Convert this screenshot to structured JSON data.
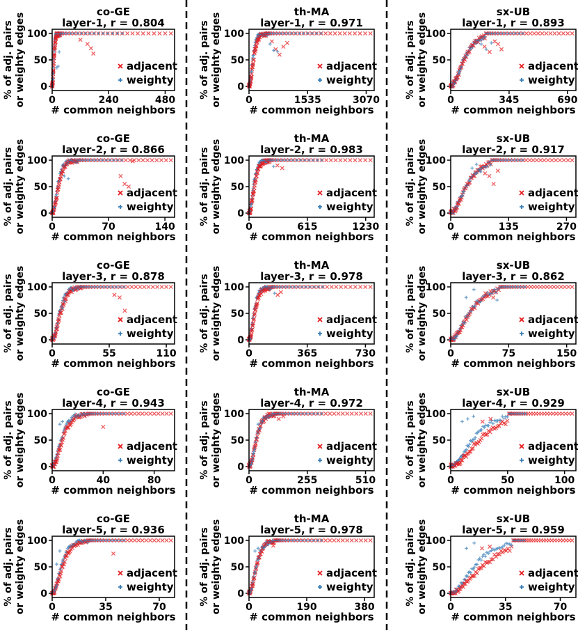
{
  "colors": {
    "adjacent": "#e41a1c",
    "weighty": "#377eb8",
    "axis": "#000000",
    "divider": "#000000"
  },
  "figure": {
    "ylabel_line1": "% of adj. pairs",
    "ylabel_line2": "or weighty edges",
    "xlabel": "# common neighbors",
    "legend_adjacent": "adjacent",
    "legend_weighty": "weighty"
  },
  "chart_data": [
    {
      "type": "scatter",
      "dataset": "co-GE",
      "title_line1": "co-GE",
      "title_line2": "layer-1, r = 0.804",
      "xticks": [
        0,
        240,
        480
      ],
      "xlim": [
        0,
        520
      ],
      "yticks": [
        0,
        50,
        100
      ],
      "ylim": [
        0,
        100
      ],
      "profile": {
        "growth": 22,
        "k_adj": 8,
        "k_wt": 7,
        "adj_outliers": [
          [
            120,
            88
          ],
          [
            150,
            80
          ],
          [
            165,
            72
          ],
          [
            175,
            62
          ]
        ],
        "wt_outliers": [
          [
            20,
            35
          ],
          [
            25,
            38
          ],
          [
            30,
            65
          ]
        ]
      },
      "series": [
        {
          "name": "adjacent",
          "marker": "x"
        },
        {
          "name": "weighty",
          "marker": "+"
        }
      ]
    },
    {
      "type": "scatter",
      "dataset": "th-MA",
      "title_line1": "th-MA",
      "title_line2": "layer-1, r = 0.971",
      "xticks": [
        0,
        1535,
        3070
      ],
      "xlim": [
        0,
        3280
      ],
      "yticks": [
        0,
        50,
        100
      ],
      "ylim": [
        0,
        100
      ],
      "profile": {
        "growth": 320,
        "k_adj": 7,
        "k_wt": 6,
        "adj_outliers": [
          [
            600,
            85
          ],
          [
            700,
            70
          ],
          [
            800,
            60
          ],
          [
            900,
            75
          ],
          [
            1000,
            82
          ]
        ],
        "wt_outliers": [
          [
            550,
            80
          ],
          [
            650,
            68
          ],
          [
            750,
            66
          ]
        ]
      },
      "series": [
        {
          "name": "adjacent",
          "marker": "x"
        },
        {
          "name": "weighty",
          "marker": "+"
        }
      ]
    },
    {
      "type": "scatter",
      "dataset": "sx-UB",
      "title_line1": "sx-UB",
      "title_line2": "layer-1, r = 0.893",
      "xticks": [
        0,
        345,
        690
      ],
      "xlim": [
        0,
        740
      ],
      "yticks": [
        0,
        50,
        100
      ],
      "ylim": [
        0,
        100
      ],
      "profile": {
        "growth": 130,
        "k_adj": 3,
        "k_wt": 2,
        "adj_outliers": [
          [
            200,
            75
          ],
          [
            230,
            65
          ],
          [
            260,
            85
          ],
          [
            280,
            80
          ],
          [
            300,
            70
          ]
        ],
        "wt_outliers": [
          [
            180,
            80
          ],
          [
            210,
            70
          ],
          [
            240,
            82
          ]
        ]
      },
      "series": [
        {
          "name": "adjacent",
          "marker": "x"
        },
        {
          "name": "weighty",
          "marker": "+"
        }
      ]
    },
    {
      "type": "scatter",
      "dataset": "co-GE",
      "title_line1": "co-GE",
      "title_line2": "layer-2, r = 0.866",
      "xticks": [
        0,
        70,
        140
      ],
      "xlim": [
        0,
        152
      ],
      "yticks": [
        0,
        50,
        100
      ],
      "ylim": [
        0,
        100
      ],
      "profile": {
        "growth": 20,
        "k_adj": 6,
        "k_wt": 5,
        "adj_outliers": [
          [
            85,
            70
          ],
          [
            90,
            55
          ],
          [
            95,
            50
          ],
          [
            100,
            98
          ]
        ],
        "wt_outliers": [
          [
            15,
            70
          ],
          [
            20,
            65
          ]
        ]
      },
      "series": [
        {
          "name": "adjacent",
          "marker": "x"
        },
        {
          "name": "weighty",
          "marker": "+"
        }
      ]
    },
    {
      "type": "scatter",
      "dataset": "th-MA",
      "title_line1": "th-MA",
      "title_line2": "layer-2, r = 0.983",
      "xticks": [
        0,
        615,
        1230
      ],
      "xlim": [
        0,
        1320
      ],
      "yticks": [
        0,
        50,
        100
      ],
      "ylim": [
        0,
        100
      ],
      "profile": {
        "growth": 140,
        "k_adj": 6,
        "k_wt": 5,
        "adj_outliers": [
          [
            300,
            90
          ],
          [
            350,
            85
          ]
        ],
        "wt_outliers": [
          [
            260,
            88
          ]
        ]
      },
      "series": [
        {
          "name": "adjacent",
          "marker": "x"
        },
        {
          "name": "weighty",
          "marker": "+"
        }
      ]
    },
    {
      "type": "scatter",
      "dataset": "sx-UB",
      "title_line1": "sx-UB",
      "title_line2": "layer-2, r = 0.917",
      "xticks": [
        0,
        135,
        270
      ],
      "xlim": [
        0,
        292
      ],
      "yticks": [
        0,
        50,
        100
      ],
      "ylim": [
        0,
        100
      ],
      "profile": {
        "growth": 60,
        "k_adj": 3,
        "k_wt": 2,
        "adj_outliers": [
          [
            80,
            75
          ],
          [
            90,
            70
          ],
          [
            100,
            55
          ],
          [
            110,
            80
          ]
        ],
        "wt_outliers": [
          [
            50,
            85
          ],
          [
            60,
            92
          ],
          [
            70,
            78
          ]
        ]
      },
      "series": [
        {
          "name": "adjacent",
          "marker": "x"
        },
        {
          "name": "weighty",
          "marker": "+"
        }
      ]
    },
    {
      "type": "scatter",
      "dataset": "co-GE",
      "title_line1": "co-GE",
      "title_line2": "layer-3, r = 0.878",
      "xticks": [
        0,
        55,
        110
      ],
      "xlim": [
        0,
        118
      ],
      "yticks": [
        0,
        50,
        100
      ],
      "ylim": [
        0,
        100
      ],
      "profile": {
        "growth": 18,
        "k_adj": 5,
        "k_wt": 4,
        "adj_outliers": [
          [
            60,
            85
          ],
          [
            65,
            80
          ],
          [
            70,
            55
          ]
        ],
        "wt_outliers": [
          [
            10,
            60
          ],
          [
            12,
            72
          ]
        ]
      },
      "series": [
        {
          "name": "adjacent",
          "marker": "x"
        },
        {
          "name": "weighty",
          "marker": "+"
        }
      ]
    },
    {
      "type": "scatter",
      "dataset": "th-MA",
      "title_line1": "th-MA",
      "title_line2": "layer-3, r = 0.978",
      "xticks": [
        0,
        365,
        730
      ],
      "xlim": [
        0,
        785
      ],
      "yticks": [
        0,
        50,
        100
      ],
      "ylim": [
        0,
        100
      ],
      "profile": {
        "growth": 90,
        "k_adj": 6,
        "k_wt": 5,
        "adj_outliers": [
          [
            180,
            85
          ],
          [
            200,
            90
          ]
        ],
        "wt_outliers": [
          [
            160,
            88
          ]
        ]
      },
      "series": [
        {
          "name": "adjacent",
          "marker": "x"
        },
        {
          "name": "weighty",
          "marker": "+"
        }
      ]
    },
    {
      "type": "scatter",
      "dataset": "sx-UB",
      "title_line1": "sx-UB",
      "title_line2": "layer-3, r = 0.862",
      "xticks": [
        0,
        75,
        150
      ],
      "xlim": [
        0,
        162
      ],
      "yticks": [
        0,
        50,
        100
      ],
      "ylim": [
        0,
        100
      ],
      "profile": {
        "growth": 40,
        "k_adj": 3,
        "k_wt": 2,
        "adj_outliers": [
          [
            45,
            88
          ],
          [
            55,
            80
          ]
        ],
        "wt_outliers": [
          [
            20,
            80
          ],
          [
            30,
            95
          ],
          [
            60,
            75
          ]
        ]
      },
      "series": [
        {
          "name": "adjacent",
          "marker": "x"
        },
        {
          "name": "weighty",
          "marker": "+"
        }
      ]
    },
    {
      "type": "scatter",
      "dataset": "co-GE",
      "title_line1": "co-GE",
      "title_line2": "layer-4, r = 0.943",
      "xticks": [
        0,
        40,
        80
      ],
      "xlim": [
        0,
        96
      ],
      "yticks": [
        0,
        50,
        100
      ],
      "ylim": [
        0,
        100
      ],
      "profile": {
        "growth": 18,
        "k_adj": 5,
        "k_wt": 4,
        "adj_outliers": [
          [
            40,
            75
          ]
        ],
        "wt_outliers": [
          [
            6,
            80
          ],
          [
            8,
            85
          ]
        ]
      },
      "series": [
        {
          "name": "adjacent",
          "marker": "x"
        },
        {
          "name": "weighty",
          "marker": "+"
        }
      ]
    },
    {
      "type": "scatter",
      "dataset": "th-MA",
      "title_line1": "th-MA",
      "title_line2": "layer-4, r = 0.972",
      "xticks": [
        0,
        255,
        510
      ],
      "xlim": [
        0,
        548
      ],
      "yticks": [
        0,
        50,
        100
      ],
      "ylim": [
        0,
        100
      ],
      "profile": {
        "growth": 80,
        "k_adj": 6,
        "k_wt": 4,
        "adj_outliers": [
          [
            130,
            90
          ],
          [
            150,
            95
          ]
        ],
        "wt_outliers": [
          [
            40,
            80
          ],
          [
            60,
            85
          ]
        ]
      },
      "series": [
        {
          "name": "adjacent",
          "marker": "x"
        },
        {
          "name": "weighty",
          "marker": "+"
        }
      ]
    },
    {
      "type": "scatter",
      "dataset": "sx-UB",
      "title_line1": "sx-UB",
      "title_line2": "layer-4, r = 0.929",
      "xticks": [
        0,
        50,
        100
      ],
      "xlim": [
        0,
        110
      ],
      "yticks": [
        0,
        50,
        100
      ],
      "ylim": [
        0,
        100
      ],
      "profile": {
        "growth": 32,
        "k_adj": 2,
        "k_wt": 2,
        "adj_outliers": [
          [
            28,
            85
          ],
          [
            35,
            90
          ]
        ],
        "wt_outliers": [
          [
            10,
            85
          ],
          [
            15,
            90
          ],
          [
            20,
            95
          ]
        ]
      },
      "series": [
        {
          "name": "adjacent",
          "marker": "x"
        },
        {
          "name": "weighty",
          "marker": "+"
        }
      ]
    },
    {
      "type": "scatter",
      "dataset": "co-GE",
      "title_line1": "co-GE",
      "title_line2": "layer-5, r = 0.936",
      "xticks": [
        0,
        35,
        70
      ],
      "xlim": [
        0,
        80
      ],
      "yticks": [
        0,
        50,
        100
      ],
      "ylim": [
        0,
        100
      ],
      "profile": {
        "growth": 15,
        "k_adj": 5,
        "k_wt": 4,
        "adj_outliers": [
          [
            40,
            75
          ]
        ],
        "wt_outliers": [
          [
            3,
            55
          ],
          [
            5,
            80
          ]
        ]
      },
      "series": [
        {
          "name": "adjacent",
          "marker": "x"
        },
        {
          "name": "weighty",
          "marker": "+"
        }
      ]
    },
    {
      "type": "scatter",
      "dataset": "th-MA",
      "title_line1": "th-MA",
      "title_line2": "layer-5, r = 0.978",
      "xticks": [
        0,
        190,
        380
      ],
      "xlim": [
        0,
        412
      ],
      "yticks": [
        0,
        50,
        100
      ],
      "ylim": [
        0,
        100
      ],
      "profile": {
        "growth": 60,
        "k_adj": 6,
        "k_wt": 4,
        "adj_outliers": [
          [
            80,
            90
          ]
        ],
        "wt_outliers": [
          [
            20,
            80
          ],
          [
            30,
            85
          ]
        ]
      },
      "series": [
        {
          "name": "adjacent",
          "marker": "x"
        },
        {
          "name": "weighty",
          "marker": "+"
        }
      ]
    },
    {
      "type": "scatter",
      "dataset": "sx-UB",
      "title_line1": "sx-UB",
      "title_line2": "layer-5, r = 0.959",
      "xticks": [
        0,
        35,
        70
      ],
      "xlim": [
        0,
        80
      ],
      "yticks": [
        0,
        50,
        100
      ],
      "ylim": [
        0,
        100
      ],
      "profile": {
        "growth": 25,
        "k_adj": 2,
        "k_wt": 2,
        "adj_outliers": [
          [
            20,
            85
          ],
          [
            25,
            88
          ]
        ],
        "wt_outliers": [
          [
            10,
            85
          ],
          [
            15,
            95
          ]
        ]
      },
      "series": [
        {
          "name": "adjacent",
          "marker": "x"
        },
        {
          "name": "weighty",
          "marker": "+"
        }
      ]
    }
  ]
}
